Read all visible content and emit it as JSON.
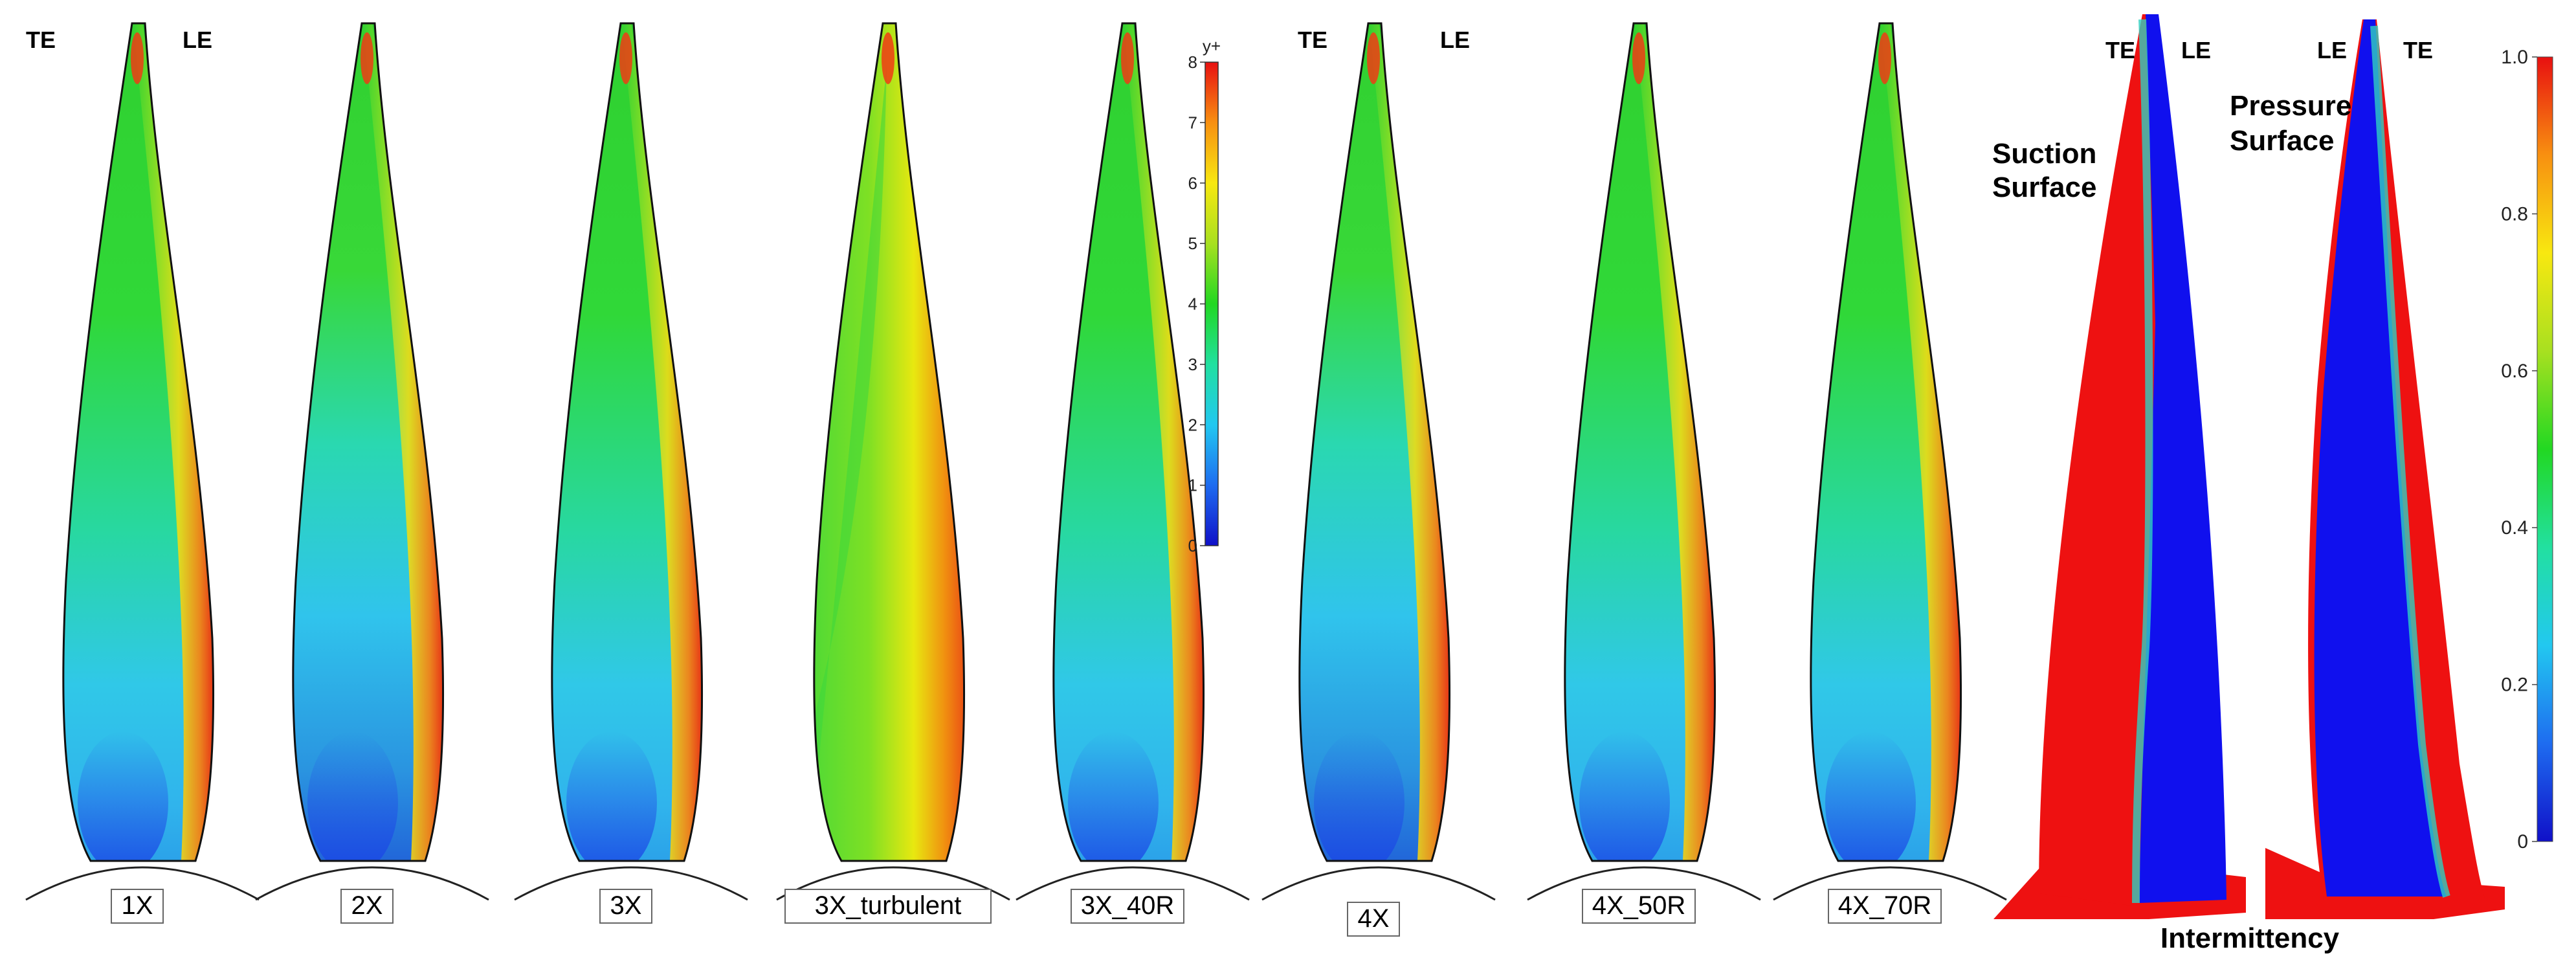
{
  "blades": [
    {
      "label": "1X",
      "variant": "standard"
    },
    {
      "label": "2X",
      "variant": "wide-blue"
    },
    {
      "label": "3X",
      "variant": "standard"
    },
    {
      "label": "3X_turbulent",
      "variant": "turbulent"
    },
    {
      "label": "3X_40R",
      "variant": "standard"
    },
    {
      "label": "4X",
      "variant": "wide-blue"
    },
    {
      "label": "4X_50R",
      "variant": "standard"
    },
    {
      "label": "4X_70R",
      "variant": "standard"
    }
  ],
  "edge_labels": {
    "te": "TE",
    "le": "LE"
  },
  "yplus_legend": {
    "title": "y+",
    "ticks": [
      "0",
      "1",
      "2",
      "3",
      "4",
      "5",
      "6",
      "7",
      "8"
    ],
    "colors": [
      "#1010c8",
      "#1e6cf0",
      "#22c8f0",
      "#22e0a0",
      "#22d822",
      "#a8e020",
      "#f8e810",
      "#f89010",
      "#e81010"
    ]
  },
  "intermittency_panel": {
    "suction_label": [
      "Suction",
      "Surface"
    ],
    "pressure_label": [
      "Pressure",
      "Surface"
    ],
    "suction_edges": [
      "TE",
      "LE"
    ],
    "pressure_edges": [
      "LE",
      "TE"
    ],
    "title": "Intermittency",
    "colors": {
      "laminar": "#1010ee",
      "turbulent": "#ee1111"
    }
  },
  "intermittency_legend": {
    "ticks": [
      "0",
      "0.2",
      "0.4",
      "0.6",
      "0.8",
      "1.0"
    ],
    "colors": [
      "#1010c8",
      "#1e6cf0",
      "#22c8f0",
      "#22e0a0",
      "#22d822",
      "#a8e020",
      "#f8e810",
      "#f89010",
      "#e81010"
    ]
  }
}
